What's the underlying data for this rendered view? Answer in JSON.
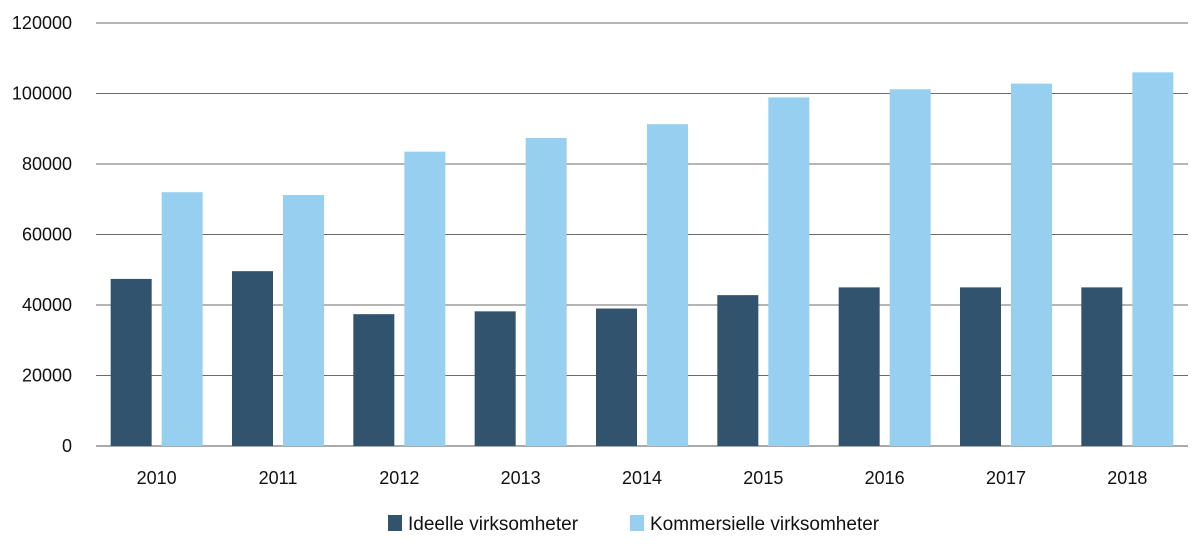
{
  "chart_data": {
    "type": "bar",
    "title": "",
    "xlabel": "",
    "ylabel": "",
    "categories": [
      "2010",
      "2011",
      "2012",
      "2013",
      "2014",
      "2015",
      "2016",
      "2017",
      "2018"
    ],
    "series": [
      {
        "name": "Ideelle virksomheter",
        "color": "#31536d",
        "values": [
          47400,
          49600,
          37400,
          38200,
          39000,
          42800,
          45000,
          45000,
          45000
        ]
      },
      {
        "name": "Kommersielle virksomheter",
        "color": "#96cff0",
        "values": [
          72000,
          71200,
          83500,
          87400,
          91300,
          98900,
          101200,
          102800,
          106000
        ]
      }
    ],
    "ylim": [
      0,
      120000
    ],
    "yticks": [
      0,
      20000,
      40000,
      60000,
      80000,
      100000,
      120000
    ],
    "ytick_labels": [
      "0",
      "20000",
      "40000",
      "60000",
      "80000",
      "100000",
      "120000"
    ],
    "grid": true,
    "legend_position": "bottom-center"
  }
}
